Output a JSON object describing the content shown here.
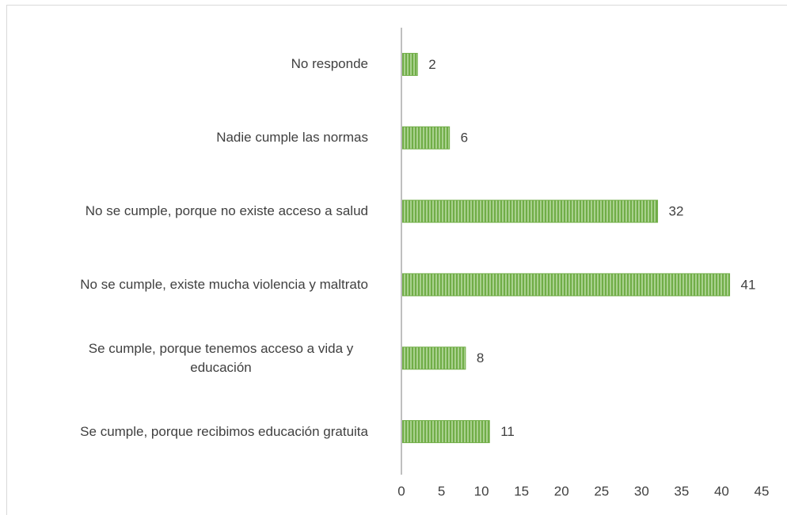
{
  "chart_data": {
    "type": "bar",
    "orientation": "horizontal",
    "categories": [
      "No responde",
      "Nadie cumple las normas",
      "No se cumple, porque no existe acceso a salud",
      "No se cumple, existe mucha violencia y maltrato",
      "Se cumple, porque tenemos acceso a vida y educación",
      "Se cumple, porque recibimos educación gratuita"
    ],
    "values": [
      2,
      6,
      32,
      41,
      8,
      11
    ],
    "color": "#70ad47",
    "xlim": [
      0,
      45
    ],
    "xticks": [
      0,
      5,
      10,
      15,
      20,
      25,
      30,
      35,
      40,
      45
    ],
    "grid": false
  }
}
